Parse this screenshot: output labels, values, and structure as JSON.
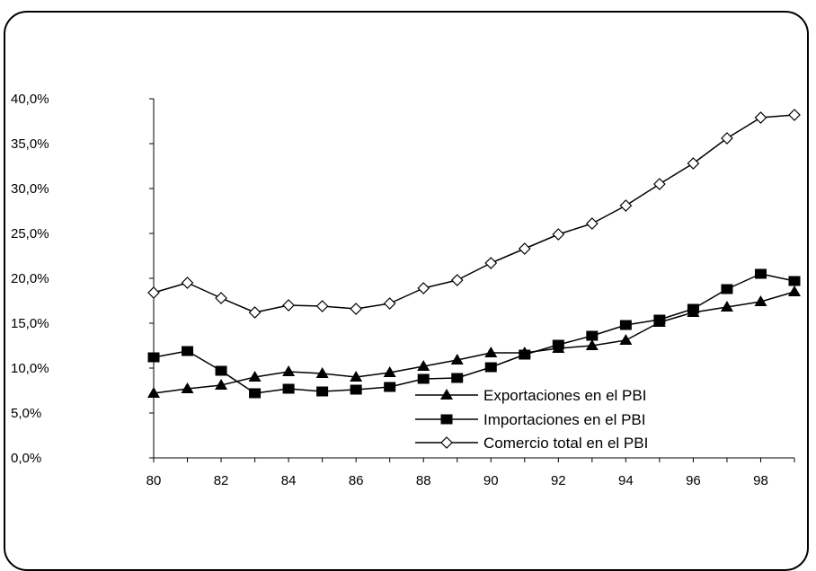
{
  "chart_data": {
    "type": "line",
    "x": [
      80,
      81,
      82,
      83,
      84,
      85,
      86,
      87,
      88,
      89,
      90,
      91,
      92,
      93,
      94,
      95,
      96,
      97,
      98,
      99
    ],
    "x_tick_labels": [
      "80",
      "82",
      "84",
      "86",
      "88",
      "90",
      "92",
      "94",
      "96",
      "98"
    ],
    "y_tick_labels": [
      "0,0%",
      "5,0%",
      "10,0%",
      "15,0%",
      "20,0%",
      "25,0%",
      "30,0%",
      "35,0%",
      "40,0%"
    ],
    "ylim": [
      0,
      40
    ],
    "xlim": [
      80,
      99
    ],
    "series": [
      {
        "name": "Exportaciones en el PBI",
        "marker": "triangle",
        "values": [
          7.2,
          7.7,
          8.1,
          9.0,
          9.6,
          9.4,
          9.0,
          9.5,
          10.2,
          10.9,
          11.7,
          11.7,
          12.2,
          12.5,
          13.1,
          15.1,
          16.2,
          16.8,
          17.4,
          18.5
        ]
      },
      {
        "name": "Importaciones en el PBI",
        "marker": "square",
        "values": [
          11.2,
          11.9,
          9.7,
          7.2,
          7.7,
          7.4,
          7.6,
          7.9,
          8.8,
          8.9,
          10.1,
          11.5,
          12.6,
          13.6,
          14.8,
          15.4,
          16.6,
          18.8,
          20.5,
          19.7
        ]
      },
      {
        "name": "Comercio total en el PBI",
        "marker": "diamond-open",
        "values": [
          18.4,
          19.5,
          17.8,
          16.2,
          17.0,
          16.9,
          16.6,
          17.2,
          18.9,
          19.8,
          21.7,
          23.3,
          24.9,
          26.1,
          28.1,
          30.5,
          32.8,
          35.6,
          37.9,
          38.2
        ]
      }
    ],
    "grid": false,
    "legend_position": "bottom-right",
    "colors": {
      "line": "#000000",
      "background": "#ffffff"
    }
  }
}
